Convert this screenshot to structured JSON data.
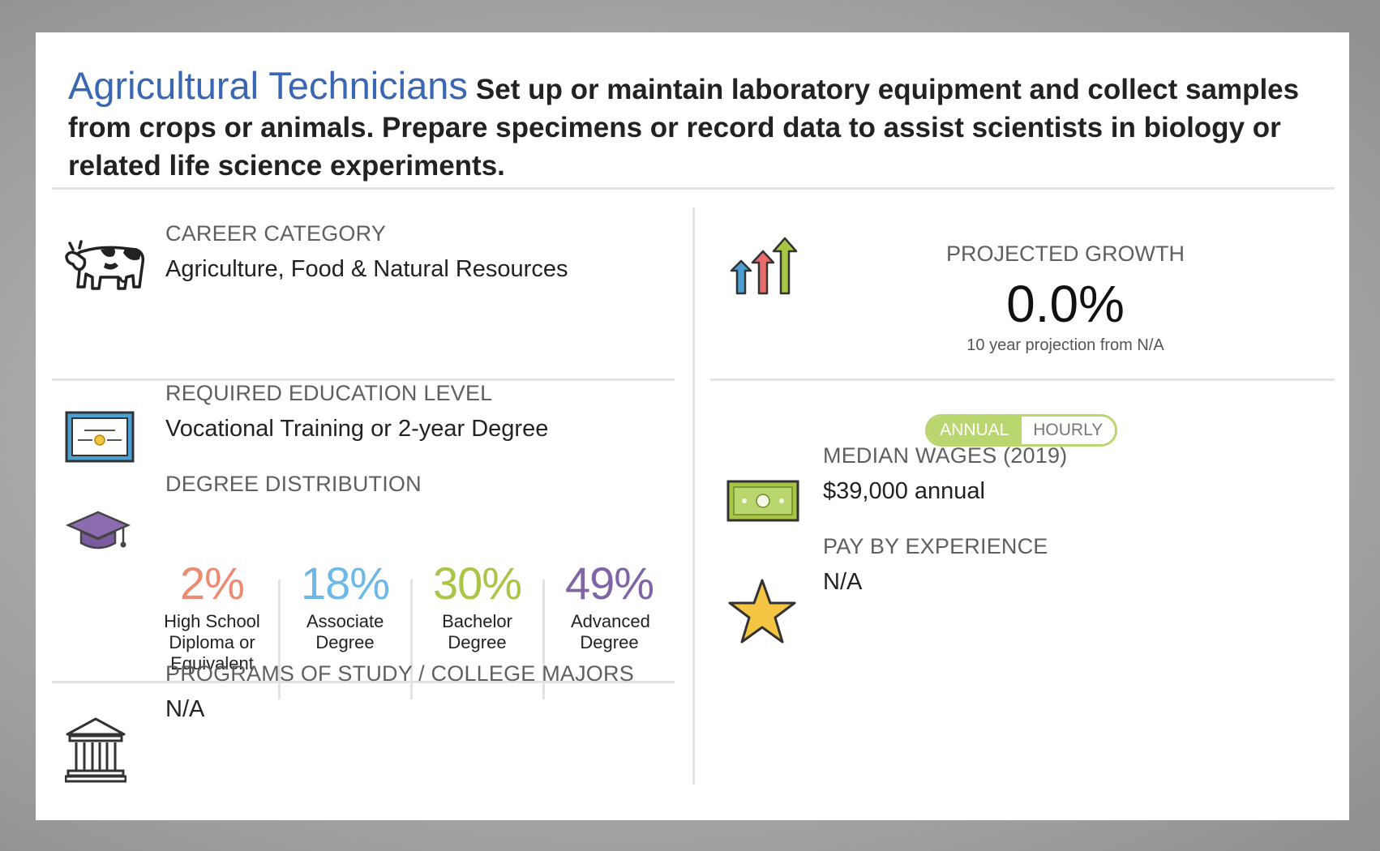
{
  "header": {
    "title": "Agricultural Technicians",
    "description": "Set up or maintain laboratory equipment and collect samples from crops or animals. Prepare specimens or record data to assist scientists in biology or related life science experiments."
  },
  "career_category": {
    "label": "CAREER CATEGORY",
    "value": "Agriculture, Food & Natural Resources",
    "icon": "cow-icon"
  },
  "education": {
    "label": "REQUIRED EDUCATION LEVEL",
    "value": "Vocational Training or 2-year Degree",
    "icon": "diploma-certificate-icon"
  },
  "degree_distribution": {
    "label": "DEGREE DISTRIBUTION",
    "icon": "graduation-cap-icon",
    "items": [
      {
        "pct": "2%",
        "label": "High School Diploma or Equivalent",
        "color": "#ef8a72"
      },
      {
        "pct": "18%",
        "label": "Associate Degree",
        "color": "#6cb8e6"
      },
      {
        "pct": "30%",
        "label": "Bachelor Degree",
        "color": "#a9c544"
      },
      {
        "pct": "49%",
        "label": "Advanced Degree",
        "color": "#7f64a6"
      }
    ]
  },
  "programs": {
    "label": "PROGRAMS OF STUDY / COLLEGE MAJORS",
    "value": "N/A",
    "icon": "building-columns-icon"
  },
  "growth": {
    "label": "PROJECTED GROWTH",
    "value": "0.0%",
    "note": "10 year projection from N/A",
    "icon": "growth-arrows-icon"
  },
  "wage_toggle": {
    "annual": "ANNUAL",
    "hourly": "HOURLY",
    "selected": "ANNUAL",
    "active_color": "#b9d66f"
  },
  "wages": {
    "label": "MEDIAN WAGES (2019)",
    "value": "$39,000 annual",
    "icon": "money-bill-icon"
  },
  "experience": {
    "label": "PAY BY EXPERIENCE",
    "value": "N/A",
    "icon": "star-icon"
  },
  "colors": {
    "title": "#3a67b4",
    "label": "#5f5f5f"
  }
}
